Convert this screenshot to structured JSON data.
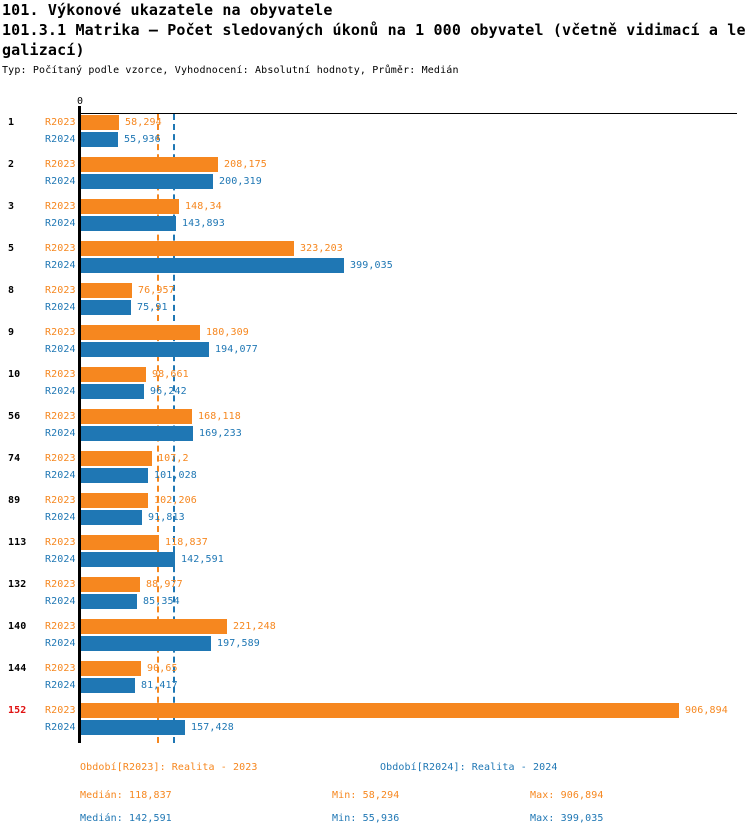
{
  "header": {
    "title": "101. Výkonové ukazatele na obyvatele",
    "subtitle_line1": "101.3.1 Matrika – Počet sledovaných úkonů na 1 000 obyvatel (včetně vidimací a le",
    "subtitle_line2": "galizací)",
    "meta": "Typ: Počítaný podle vzorce, Vyhodnocení: Absolutní hodnoty, Průměr: Medián"
  },
  "colors": {
    "r2023": "#F6871F",
    "r2024": "#1F77B4",
    "highlight_category": "#E01212",
    "axis": "#000000"
  },
  "axis": {
    "zero_label": "0"
  },
  "chart_data": {
    "type": "bar",
    "orientation": "horizontal",
    "title": "101.3.1 Matrika – Počet sledovaných úkonů na 1 000 obyvatel (včetně vidimací a legalizací)",
    "xlim": [
      0,
      906.894
    ],
    "grid": false,
    "categories": [
      "1",
      "2",
      "3",
      "5",
      "8",
      "9",
      "10",
      "56",
      "74",
      "89",
      "113",
      "132",
      "140",
      "144",
      "152"
    ],
    "highlighted_category": "152",
    "series": [
      {
        "name": "R2023",
        "color": "#F6871F",
        "values": [
          58.294,
          208.175,
          148.34,
          323.203,
          76.957,
          180.309,
          98.661,
          168.118,
          107.2,
          102.206,
          118.837,
          88.977,
          221.248,
          90.65,
          906.894
        ],
        "labels": [
          "58,294",
          "208,175",
          "148,34",
          "323,203",
          "76,957",
          "180,309",
          "98,661",
          "168,118",
          "107,2",
          "102,206",
          "118,837",
          "88,977",
          "221,248",
          "90,65",
          "906,894"
        ],
        "median": 118.837
      },
      {
        "name": "R2024",
        "color": "#1F77B4",
        "values": [
          55.936,
          200.319,
          143.893,
          399.035,
          75.91,
          194.077,
          96.242,
          169.233,
          101.028,
          91.813,
          142.591,
          85.354,
          197.589,
          81.417,
          157.428
        ],
        "labels": [
          "55,936",
          "200,319",
          "143,893",
          "399,035",
          "75,91",
          "194,077",
          "96,242",
          "169,233",
          "101,028",
          "91,813",
          "142,591",
          "85,354",
          "197,589",
          "81,417",
          "157,428"
        ],
        "median": 142.591
      }
    ]
  },
  "footer": {
    "legend_r2023": "Období[R2023]: Realita - 2023",
    "legend_r2024": "Období[R2024]: Realita - 2024",
    "stats_r2023": {
      "median": "Medián: 118,837",
      "min": "Min: 58,294",
      "max": "Max: 906,894"
    },
    "stats_r2024": {
      "median": "Medián: 142,591",
      "min": "Min: 55,936",
      "max": "Max: 399,035"
    }
  }
}
